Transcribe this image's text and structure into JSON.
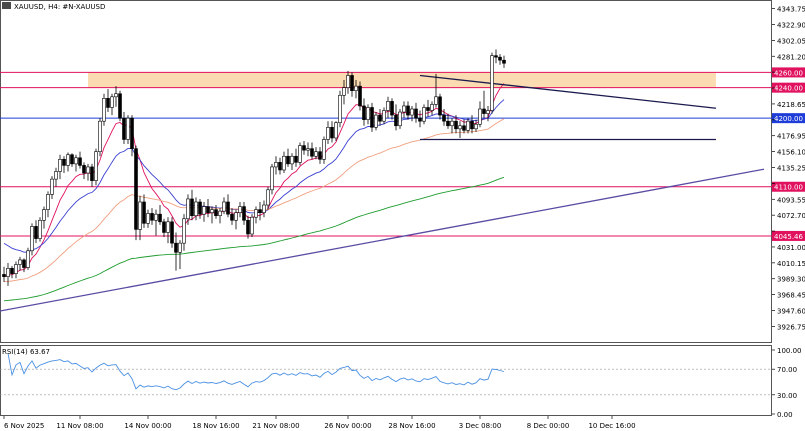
{
  "chart_data": {
    "type": "candlestick",
    "symbol_label": "XAUUSD, H4:  #N-XAUUSD",
    "y_range": [
      3905,
      4355
    ],
    "y_ticks": [
      "4343.75",
      "4322.90",
      "4302.05",
      "4281.20",
      "4260.35",
      "4239.50",
      "4218.65",
      "4197.80",
      "4176.95",
      "4156.10",
      "4135.25",
      "4114.40",
      "4093.55",
      "4072.70",
      "4051.85",
      "4031.00",
      "4010.15",
      "3989.30",
      "3968.45",
      "3947.60",
      "3926.75"
    ],
    "x_labels": [
      {
        "label": "6 Nov 2025",
        "index": 0
      },
      {
        "label": "11 Nov 08:00",
        "index": 19
      },
      {
        "label": "14 Nov 00:00",
        "index": 36
      },
      {
        "label": "18 Nov 16:00",
        "index": 53
      },
      {
        "label": "21 Nov 08:00",
        "index": 68
      },
      {
        "label": "26 Nov 00:00",
        "index": 86
      },
      {
        "label": "28 Nov 16:00",
        "index": 102
      },
      {
        "label": "3 Dec 08:00",
        "index": 119
      },
      {
        "label": "8 Dec 00:00",
        "index": 136
      },
      {
        "label": "10 Dec 16:00",
        "index": 152
      }
    ],
    "horizontal_levels": [
      {
        "label": "4260.00",
        "value": 4260.0,
        "color": "#e0115f"
      },
      {
        "label": "4240.00",
        "value": 4240.0,
        "color": "#e0115f"
      },
      {
        "label": "4200.00",
        "value": 4200.0,
        "color": "#1e3dd8"
      },
      {
        "label": "4110.00",
        "value": 4110.0,
        "color": "#e0115f"
      },
      {
        "label": "4045.46",
        "value": 4045.46,
        "color": "#e0115f"
      }
    ],
    "zone": {
      "from": 4240,
      "to": 4260,
      "color": "#fbd7a8"
    },
    "trendlines": [
      {
        "from": [
          104,
          4256
        ],
        "to": [
          178,
          4213
        ],
        "color": "#1a1a4e"
      },
      {
        "from": [
          104,
          4172
        ],
        "to": [
          178,
          4172
        ],
        "color": "#1a1a4e"
      },
      {
        "from": [
          -2,
          3946
        ],
        "to": [
          190,
          4133
        ],
        "color": "#5b4aa3"
      }
    ],
    "rsi": {
      "label": "RSI(14) 63.67",
      "ticks": [
        "100.00",
        "70.00",
        "30.00",
        "0.00"
      ],
      "levels": [
        70,
        30
      ],
      "line_color": "#4a90e2"
    },
    "colors": {
      "bull": "#ffffff",
      "bear": "#000000",
      "wick": "#000000",
      "ema_fast": "#e0115f",
      "ema_mid": "#3a3fd0",
      "ema_slow": "#f0a080",
      "ema_long": "#1f9c2f"
    },
    "candles_ohlc": [
      [
        3995,
        4005,
        3985,
        3992
      ],
      [
        3992,
        4010,
        3980,
        4003
      ],
      [
        4003,
        4006,
        3990,
        3996
      ],
      [
        3996,
        4012,
        3990,
        4008
      ],
      [
        4008,
        4018,
        4000,
        4014
      ],
      [
        4014,
        4016,
        3998,
        4004
      ],
      [
        4004,
        4030,
        4001,
        4026
      ],
      [
        4026,
        4062,
        4020,
        4058
      ],
      [
        4058,
        4066,
        4036,
        4042
      ],
      [
        4042,
        4070,
        4038,
        4066
      ],
      [
        4066,
        4084,
        4055,
        4080
      ],
      [
        4080,
        4104,
        4070,
        4100
      ],
      [
        4100,
        4124,
        4094,
        4120
      ],
      [
        4120,
        4135,
        4110,
        4130
      ],
      [
        4130,
        4152,
        4120,
        4146
      ],
      [
        4146,
        4150,
        4128,
        4138
      ],
      [
        4138,
        4155,
        4130,
        4152
      ],
      [
        4152,
        4154,
        4136,
        4140
      ],
      [
        4140,
        4152,
        4130,
        4148
      ],
      [
        4148,
        4156,
        4134,
        4138
      ],
      [
        4138,
        4142,
        4120,
        4128
      ],
      [
        4128,
        4140,
        4118,
        4136
      ],
      [
        4136,
        4140,
        4110,
        4118
      ],
      [
        4118,
        4160,
        4112,
        4156
      ],
      [
        4156,
        4200,
        4150,
        4196
      ],
      [
        4196,
        4232,
        4190,
        4226
      ],
      [
        4226,
        4238,
        4208,
        4214
      ],
      [
        4214,
        4232,
        4204,
        4228
      ],
      [
        4228,
        4242,
        4215,
        4232
      ],
      [
        4232,
        4236,
        4196,
        4200
      ],
      [
        4200,
        4208,
        4166,
        4172
      ],
      [
        4172,
        4204,
        4166,
        4200
      ],
      [
        4200,
        4204,
        4150,
        4160
      ],
      [
        4160,
        4164,
        4040,
        4054
      ],
      [
        4054,
        4098,
        4040,
        4090
      ],
      [
        4090,
        4100,
        4056,
        4062
      ],
      [
        4062,
        4080,
        4056,
        4075
      ],
      [
        4075,
        4082,
        4060,
        4066
      ],
      [
        4066,
        4080,
        4046,
        4074
      ],
      [
        4074,
        4086,
        4060,
        4064
      ],
      [
        4064,
        4068,
        4044,
        4050
      ],
      [
        4050,
        4070,
        4036,
        4064
      ],
      [
        4064,
        4070,
        4030,
        4036
      ],
      [
        4036,
        4050,
        4000,
        4024
      ],
      [
        4024,
        4040,
        4002,
        4036
      ],
      [
        4036,
        4074,
        4026,
        4068
      ],
      [
        4068,
        4100,
        4060,
        4094
      ],
      [
        4094,
        4106,
        4066,
        4072
      ],
      [
        4072,
        4096,
        4066,
        4090
      ],
      [
        4090,
        4094,
        4068,
        4074
      ],
      [
        4074,
        4090,
        4064,
        4084
      ],
      [
        4084,
        4094,
        4070,
        4076
      ],
      [
        4076,
        4084,
        4062,
        4080
      ],
      [
        4080,
        4086,
        4068,
        4072
      ],
      [
        4072,
        4082,
        4062,
        4078
      ],
      [
        4078,
        4096,
        4074,
        4090
      ],
      [
        4090,
        4100,
        4070,
        4074
      ],
      [
        4074,
        4082,
        4060,
        4066
      ],
      [
        4066,
        4080,
        4054,
        4076
      ],
      [
        4076,
        4090,
        4070,
        4084
      ],
      [
        4084,
        4090,
        4060,
        4066
      ],
      [
        4066,
        4072,
        4042,
        4048
      ],
      [
        4048,
        4074,
        4044,
        4070
      ],
      [
        4070,
        4084,
        4062,
        4080
      ],
      [
        4080,
        4090,
        4066,
        4076
      ],
      [
        4076,
        4092,
        4070,
        4086
      ],
      [
        4086,
        4110,
        4080,
        4106
      ],
      [
        4106,
        4140,
        4100,
        4136
      ],
      [
        4136,
        4150,
        4126,
        4142
      ],
      [
        4142,
        4148,
        4126,
        4132
      ],
      [
        4132,
        4156,
        4128,
        4150
      ],
      [
        4150,
        4160,
        4136,
        4140
      ],
      [
        4140,
        4154,
        4132,
        4150
      ],
      [
        4150,
        4160,
        4136,
        4142
      ],
      [
        4142,
        4168,
        4138,
        4164
      ],
      [
        4164,
        4170,
        4152,
        4158
      ],
      [
        4158,
        4168,
        4150,
        4160
      ],
      [
        4160,
        4168,
        4146,
        4150
      ],
      [
        4150,
        4162,
        4146,
        4156
      ],
      [
        4156,
        4162,
        4140,
        4146
      ],
      [
        4146,
        4176,
        4140,
        4172
      ],
      [
        4172,
        4196,
        4166,
        4188
      ],
      [
        4188,
        4196,
        4168,
        4174
      ],
      [
        4174,
        4196,
        4170,
        4194
      ],
      [
        4194,
        4236,
        4188,
        4230
      ],
      [
        4230,
        4250,
        4218,
        4240
      ],
      [
        4240,
        4262,
        4232,
        4256
      ],
      [
        4256,
        4260,
        4228,
        4236
      ],
      [
        4236,
        4250,
        4226,
        4242
      ],
      [
        4242,
        4248,
        4210,
        4216
      ],
      [
        4216,
        4226,
        4190,
        4198
      ],
      [
        4198,
        4218,
        4192,
        4214
      ],
      [
        4214,
        4220,
        4182,
        4188
      ],
      [
        4188,
        4208,
        4184,
        4204
      ],
      [
        4204,
        4212,
        4190,
        4196
      ],
      [
        4196,
        4214,
        4192,
        4210
      ],
      [
        4210,
        4228,
        4200,
        4222
      ],
      [
        4222,
        4226,
        4198,
        4204
      ],
      [
        4204,
        4218,
        4184,
        4190
      ],
      [
        4190,
        4212,
        4186,
        4208
      ],
      [
        4208,
        4222,
        4200,
        4216
      ],
      [
        4216,
        4222,
        4198,
        4204
      ],
      [
        4204,
        4216,
        4196,
        4212
      ],
      [
        4212,
        4220,
        4194,
        4200
      ],
      [
        4200,
        4210,
        4188,
        4196
      ],
      [
        4196,
        4218,
        4192,
        4214
      ],
      [
        4214,
        4224,
        4202,
        4210
      ],
      [
        4210,
        4222,
        4204,
        4218
      ],
      [
        4218,
        4258,
        4214,
        4228
      ],
      [
        4228,
        4232,
        4198,
        4204
      ],
      [
        4204,
        4212,
        4190,
        4196
      ],
      [
        4196,
        4206,
        4186,
        4190
      ],
      [
        4190,
        4200,
        4180,
        4196
      ],
      [
        4196,
        4204,
        4180,
        4186
      ],
      [
        4186,
        4196,
        4174,
        4190
      ],
      [
        4190,
        4198,
        4180,
        4184
      ],
      [
        4184,
        4200,
        4180,
        4196
      ],
      [
        4196,
        4204,
        4180,
        4186
      ],
      [
        4186,
        4198,
        4182,
        4192
      ],
      [
        4192,
        4222,
        4188,
        4212
      ],
      [
        4212,
        4236,
        4200,
        4206
      ],
      [
        4206,
        4216,
        4196,
        4210
      ],
      [
        4210,
        4286,
        4206,
        4282
      ],
      [
        4282,
        4290,
        4272,
        4280
      ],
      [
        4280,
        4284,
        4270,
        4276
      ],
      [
        4276,
        4282,
        4266,
        4272
      ]
    ]
  }
}
